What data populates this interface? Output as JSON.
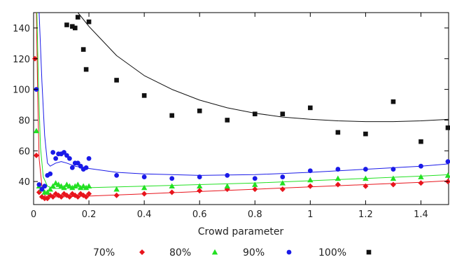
{
  "chart_data": {
    "type": "scatter",
    "title": "",
    "xlabel": "Crowd parameter",
    "ylabel": "",
    "xlim": [
      0,
      1.5
    ],
    "ylim": [
      25,
      150
    ],
    "x_ticks": [
      0,
      0.2,
      0.4,
      0.6,
      0.8,
      1,
      1.2,
      1.4
    ],
    "x_tick_labels": [
      "0",
      "0.2",
      "0.4",
      "0.6",
      "0.8",
      "1",
      "1.2",
      "1.4"
    ],
    "y_ticks": [
      40,
      60,
      80,
      100,
      120,
      140
    ],
    "y_tick_labels": [
      "40",
      "60",
      "80",
      "100",
      "120",
      "140"
    ],
    "grid": false,
    "legend_position": "bottom",
    "series": [
      {
        "name": "70%",
        "color": "#e8141c",
        "marker": "diamond",
        "points": [
          [
            0.005,
            120
          ],
          [
            0.01,
            57
          ],
          [
            0.02,
            33
          ],
          [
            0.03,
            30
          ],
          [
            0.04,
            29
          ],
          [
            0.05,
            29
          ],
          [
            0.06,
            31
          ],
          [
            0.07,
            30
          ],
          [
            0.08,
            32
          ],
          [
            0.09,
            31
          ],
          [
            0.1,
            30
          ],
          [
            0.11,
            32
          ],
          [
            0.12,
            31
          ],
          [
            0.13,
            30
          ],
          [
            0.14,
            32
          ],
          [
            0.15,
            31
          ],
          [
            0.16,
            30
          ],
          [
            0.17,
            32
          ],
          [
            0.18,
            31
          ],
          [
            0.19,
            30
          ],
          [
            0.2,
            32
          ],
          [
            0.3,
            31
          ],
          [
            0.4,
            32
          ],
          [
            0.5,
            33
          ],
          [
            0.6,
            34
          ],
          [
            0.7,
            35
          ],
          [
            0.8,
            35
          ],
          [
            0.9,
            35
          ],
          [
            1.0,
            37
          ],
          [
            1.1,
            38
          ],
          [
            1.2,
            37
          ],
          [
            1.3,
            38
          ],
          [
            1.4,
            39
          ],
          [
            1.5,
            40
          ]
        ],
        "fit": [
          [
            0.01,
            150
          ],
          [
            0.015,
            95
          ],
          [
            0.02,
            55
          ],
          [
            0.03,
            37
          ],
          [
            0.04,
            31
          ],
          [
            0.05,
            30
          ],
          [
            0.1,
            30
          ],
          [
            0.2,
            30.5
          ],
          [
            0.4,
            32
          ],
          [
            0.6,
            33.5
          ],
          [
            0.8,
            35
          ],
          [
            1.0,
            36.5
          ],
          [
            1.2,
            38
          ],
          [
            1.4,
            39.5
          ],
          [
            1.5,
            40.5
          ]
        ]
      },
      {
        "name": "80%",
        "color": "#22e022",
        "marker": "triangle",
        "points": [
          [
            0.01,
            73
          ],
          [
            0.02,
            37
          ],
          [
            0.03,
            35
          ],
          [
            0.04,
            33
          ],
          [
            0.05,
            33
          ],
          [
            0.06,
            35
          ],
          [
            0.07,
            37
          ],
          [
            0.08,
            39
          ],
          [
            0.09,
            38
          ],
          [
            0.1,
            37
          ],
          [
            0.11,
            36
          ],
          [
            0.12,
            38
          ],
          [
            0.13,
            37
          ],
          [
            0.14,
            36
          ],
          [
            0.15,
            37
          ],
          [
            0.16,
            38
          ],
          [
            0.17,
            36
          ],
          [
            0.18,
            37
          ],
          [
            0.19,
            36
          ],
          [
            0.2,
            37
          ],
          [
            0.3,
            35
          ],
          [
            0.4,
            36
          ],
          [
            0.5,
            37
          ],
          [
            0.6,
            37
          ],
          [
            0.7,
            37
          ],
          [
            0.8,
            38
          ],
          [
            0.9,
            39
          ],
          [
            1.0,
            41
          ],
          [
            1.1,
            42
          ],
          [
            1.2,
            42
          ],
          [
            1.3,
            42
          ],
          [
            1.4,
            43
          ],
          [
            1.5,
            44
          ]
        ],
        "fit": [
          [
            0.012,
            150
          ],
          [
            0.018,
            100
          ],
          [
            0.025,
            62
          ],
          [
            0.035,
            43
          ],
          [
            0.05,
            37
          ],
          [
            0.07,
            35.5
          ],
          [
            0.1,
            35.5
          ],
          [
            0.2,
            36
          ],
          [
            0.4,
            37
          ],
          [
            0.6,
            38
          ],
          [
            0.8,
            39
          ],
          [
            1.0,
            40.5
          ],
          [
            1.2,
            42
          ],
          [
            1.4,
            43.5
          ],
          [
            1.5,
            44.5
          ]
        ]
      },
      {
        "name": "90%",
        "color": "#1a1ae8",
        "marker": "circle",
        "points": [
          [
            0.01,
            100
          ],
          [
            0.02,
            38
          ],
          [
            0.03,
            35
          ],
          [
            0.04,
            37
          ],
          [
            0.05,
            44
          ],
          [
            0.06,
            45
          ],
          [
            0.07,
            59
          ],
          [
            0.08,
            55
          ],
          [
            0.09,
            58
          ],
          [
            0.1,
            58
          ],
          [
            0.11,
            59
          ],
          [
            0.12,
            57
          ],
          [
            0.13,
            55
          ],
          [
            0.14,
            49
          ],
          [
            0.15,
            52
          ],
          [
            0.16,
            52
          ],
          [
            0.17,
            50
          ],
          [
            0.18,
            48
          ],
          [
            0.19,
            49
          ],
          [
            0.2,
            55
          ],
          [
            0.3,
            44
          ],
          [
            0.4,
            43
          ],
          [
            0.5,
            42
          ],
          [
            0.6,
            43
          ],
          [
            0.7,
            44
          ],
          [
            0.8,
            42
          ],
          [
            0.9,
            43
          ],
          [
            1.0,
            47
          ],
          [
            1.1,
            48
          ],
          [
            1.2,
            48
          ],
          [
            1.3,
            48
          ],
          [
            1.4,
            50
          ],
          [
            1.5,
            53
          ]
        ],
        "fit": [
          [
            0.02,
            150
          ],
          [
            0.03,
            105
          ],
          [
            0.04,
            70
          ],
          [
            0.05,
            52
          ],
          [
            0.06,
            50
          ],
          [
            0.08,
            52
          ],
          [
            0.1,
            53
          ],
          [
            0.12,
            52
          ],
          [
            0.15,
            50
          ],
          [
            0.2,
            48.5
          ],
          [
            0.3,
            46
          ],
          [
            0.4,
            45
          ],
          [
            0.6,
            44
          ],
          [
            0.8,
            44.5
          ],
          [
            1.0,
            46
          ],
          [
            1.2,
            48
          ],
          [
            1.4,
            50
          ],
          [
            1.5,
            51.5
          ]
        ]
      },
      {
        "name": "100%",
        "color": "#111111",
        "marker": "square",
        "points": [
          [
            0.12,
            142
          ],
          [
            0.14,
            141
          ],
          [
            0.15,
            140
          ],
          [
            0.16,
            147
          ],
          [
            0.18,
            126
          ],
          [
            0.19,
            113
          ],
          [
            0.2,
            144
          ],
          [
            0.3,
            106
          ],
          [
            0.4,
            96
          ],
          [
            0.5,
            83
          ],
          [
            0.6,
            86
          ],
          [
            0.7,
            80
          ],
          [
            0.8,
            84
          ],
          [
            0.9,
            84
          ],
          [
            1.0,
            88
          ],
          [
            1.1,
            72
          ],
          [
            1.2,
            71
          ],
          [
            1.3,
            92
          ],
          [
            1.4,
            66
          ],
          [
            1.5,
            75
          ]
        ],
        "fit": [
          [
            0.16,
            150
          ],
          [
            0.2,
            141
          ],
          [
            0.3,
            122
          ],
          [
            0.4,
            109
          ],
          [
            0.5,
            100
          ],
          [
            0.6,
            93
          ],
          [
            0.7,
            88
          ],
          [
            0.8,
            84.5
          ],
          [
            0.9,
            82
          ],
          [
            1.0,
            80.5
          ],
          [
            1.1,
            79.5
          ],
          [
            1.2,
            79
          ],
          [
            1.3,
            79
          ],
          [
            1.4,
            79.5
          ],
          [
            1.5,
            80.5
          ]
        ]
      }
    ]
  }
}
